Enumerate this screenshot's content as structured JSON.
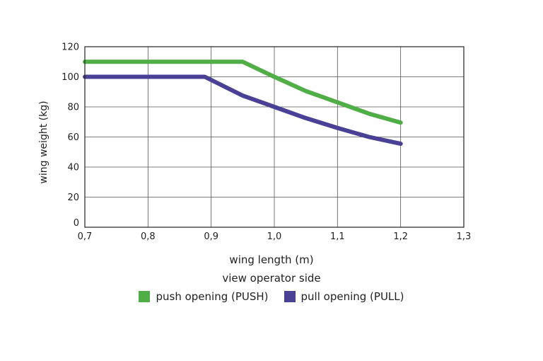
{
  "chart_data": {
    "type": "line",
    "xlabel": "wing length (m)",
    "ylabel": "wing weight (kg)",
    "xlim": [
      0.7,
      1.3
    ],
    "ylim": [
      0,
      120
    ],
    "x_ticks": [
      "0,7",
      "0,8",
      "0,9",
      "1,0",
      "1,1",
      "1,2",
      "1,3"
    ],
    "y_ticks": [
      "0",
      "20",
      "40",
      "60",
      "80",
      "100",
      "120"
    ],
    "grid": true,
    "subtitle": "view operator side",
    "legend_position": "bottom",
    "series": [
      {
        "name": "push opening (PUSH)",
        "color": "#4fae45",
        "x": [
          0.7,
          0.95,
          1.0,
          1.05,
          1.1,
          1.15,
          1.2
        ],
        "y": [
          110,
          110,
          100,
          90.5,
          83,
          75.5,
          69.5
        ]
      },
      {
        "name": "pull opening (PULL)",
        "color": "#4a4096",
        "x": [
          0.7,
          0.89,
          0.95,
          1.0,
          1.05,
          1.1,
          1.15,
          1.2
        ],
        "y": [
          100,
          100,
          87.5,
          80,
          72.5,
          66,
          60,
          55.5
        ]
      }
    ]
  }
}
